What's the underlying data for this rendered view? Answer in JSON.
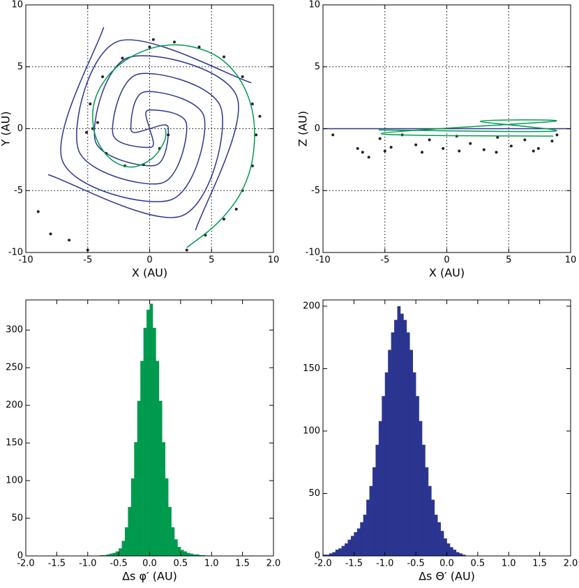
{
  "chart_data": [
    {
      "type": "line",
      "xlabel": "X (AU)",
      "ylabel": "Y (AU)",
      "xlim": [
        -10,
        10
      ],
      "ylim": [
        -10,
        10
      ],
      "xticks": [
        -10,
        -5,
        0,
        5,
        10
      ],
      "yticks": [
        -10,
        -5,
        0,
        5,
        10
      ],
      "grid": true,
      "series": [
        {
          "mode": "line",
          "color": "#2b3590",
          "x": [
            0,
            0.11,
            -2.97,
            -0.95,
            5.76,
            2.6,
            -8.2
          ],
          "values": [
            0,
            -1.5,
            -0.42,
            4.4,
            1.68,
            -7.04,
            -3.71
          ]
        },
        {
          "mode": "line",
          "color": "#2b3590",
          "x": [
            0,
            1.5,
            0.42,
            -4.4,
            -1.68,
            7.04,
            3.71
          ],
          "values": [
            0,
            0.11,
            -2.97,
            -0.95,
            5.76,
            2.6,
            -8.2
          ]
        },
        {
          "mode": "line",
          "color": "#2b3590",
          "x": [
            0,
            -0.11,
            2.97,
            0.95,
            -5.76,
            -2.6,
            8.2
          ],
          "values": [
            0,
            1.5,
            0.42,
            -4.4,
            -1.68,
            7.04,
            3.71
          ]
        },
        {
          "mode": "line",
          "color": "#2b3590",
          "x": [
            0,
            -1.5,
            -0.42,
            4.4,
            1.68,
            -7.04,
            -3.71
          ],
          "values": [
            0,
            -0.11,
            2.97,
            0.95,
            -5.76,
            -2.6,
            8.2
          ]
        },
        {
          "mode": "points",
          "color": "#222222",
          "x": [
            1.5,
            0.8,
            -0.5,
            -2,
            -3.5,
            -4.6,
            -4.8,
            -3.8,
            -2.2,
            0,
            2,
            4,
            6,
            7.5,
            8.3,
            8.6,
            8.3,
            7.5,
            6,
            4.5,
            3,
            -4.2,
            -5.1,
            0.3,
            8.9,
            7,
            -9,
            -8,
            -6.5,
            -5
          ],
          "values": [
            -0.5,
            -1.6,
            -2.9,
            -3,
            -2,
            0,
            2,
            4.2,
            5.7,
            6.6,
            7,
            6.6,
            5.8,
            4.2,
            2,
            -0.5,
            -3,
            -5,
            -7.3,
            -8.6,
            -9.8,
            0.5,
            -0.3,
            7.2,
            1,
            -6.5,
            -6.7,
            -8.5,
            -9,
            -9.8
          ]
        },
        {
          "mode": "line",
          "color": "#009a4e",
          "x": [
            1.3,
            1.2,
            0.2,
            -1.5,
            -3.2,
            -4.4,
            -4.5,
            -3.4,
            -1.5,
            1,
            3.5,
            5.8,
            7.5,
            8.4,
            8.3,
            7.3,
            5.4,
            3
          ],
          "values": [
            0,
            -1,
            -2.4,
            -3.1,
            -2.4,
            -0.5,
            2,
            4.2,
            5.8,
            6.7,
            6.6,
            5.6,
            3.6,
            0.8,
            -2.5,
            -5.3,
            -7.7,
            -9.6
          ]
        }
      ]
    },
    {
      "type": "line",
      "xlabel": "X (AU)",
      "ylabel": "Z (AU)",
      "xlim": [
        -10,
        10
      ],
      "ylim": [
        -10,
        10
      ],
      "xticks": [
        -10,
        -5,
        0,
        5,
        10
      ],
      "yticks": [
        -10,
        -5,
        0,
        5,
        10
      ],
      "grid": true,
      "series": [
        {
          "mode": "line",
          "color": "#2b3590",
          "x": [
            -10,
            10
          ],
          "values": [
            0,
            0
          ]
        },
        {
          "mode": "points",
          "color": "#222222",
          "x": [
            -5.4,
            -4.5,
            -3.6,
            -2.5,
            -1.4,
            -0.3,
            0.8,
            1.9,
            3,
            4.1,
            5.2,
            6.3,
            7.4,
            8.5,
            8.9,
            -5,
            -2,
            1,
            4,
            7,
            -9.2,
            -7.2,
            -6.8,
            -6.3
          ],
          "values": [
            -0.8,
            -1.5,
            -0.5,
            -1.3,
            -0.9,
            -1.6,
            -0.6,
            -1.2,
            -1.7,
            -0.7,
            -1.4,
            -0.9,
            -1.6,
            -1,
            -0.5,
            -1.8,
            -1.9,
            -1.8,
            -1.9,
            -1.8,
            -0.5,
            -1.6,
            -1.9,
            -2.3
          ]
        },
        {
          "mode": "line",
          "color": "#009a4e",
          "x": [
            -5.5,
            8.7,
            2.7,
            8.7,
            -5.3,
            8.6
          ],
          "values": [
            -0.1,
            -0.2,
            0.6,
            0.6,
            -0.4,
            -0.6
          ]
        }
      ]
    },
    {
      "type": "histogram",
      "xlabel": "Δs φ′ (AU)",
      "color": "#009a4e",
      "xlim": [
        -2,
        2
      ],
      "ylim": [
        0,
        340
      ],
      "xticks": [
        {
          "value": -2,
          "label": "-2.0"
        },
        {
          "value": -1.5,
          "label": "-1.5"
        },
        {
          "value": -1,
          "label": "-1.0"
        },
        {
          "value": -0.5,
          "label": "-0.5"
        },
        {
          "value": 0,
          "label": "0.0"
        },
        {
          "value": 0.5,
          "label": "0.5"
        },
        {
          "value": 1,
          "label": "1.0"
        },
        {
          "value": 1.5,
          "label": "1.5"
        },
        {
          "value": 2,
          "label": "2.0"
        }
      ],
      "yticks": [
        0,
        50,
        100,
        150,
        200,
        250,
        300
      ],
      "bins": [
        -0.8,
        -0.75,
        -0.7,
        -0.65,
        -0.6,
        -0.55,
        -0.5,
        -0.45,
        -0.4,
        -0.35,
        -0.3,
        -0.25,
        -0.2,
        -0.15,
        -0.1,
        -0.05,
        0,
        0.05,
        0.1,
        0.15,
        0.2,
        0.25,
        0.3,
        0.35,
        0.4,
        0.45,
        0.5,
        0.55,
        0.6,
        0.65,
        0.7,
        0.75,
        0.8,
        0.85,
        0.9
      ],
      "values": [
        1,
        1,
        2,
        3,
        4,
        6,
        10,
        20,
        38,
        65,
        103,
        151,
        206,
        259,
        303,
        327,
        335,
        303,
        259,
        206,
        151,
        103,
        65,
        38,
        22,
        12,
        8,
        6,
        4,
        3,
        2,
        2,
        1,
        1
      ]
    },
    {
      "type": "histogram",
      "xlabel": "Δs Θ′ (AU)",
      "color": "#2b3590",
      "xlim": [
        -2,
        2
      ],
      "ylim": [
        0,
        205
      ],
      "xticks": [
        {
          "value": -2,
          "label": "-2.0"
        },
        {
          "value": -1.5,
          "label": "-1.5"
        },
        {
          "value": -1,
          "label": "-1.0"
        },
        {
          "value": -0.5,
          "label": "-0.5"
        },
        {
          "value": 0,
          "label": "0.0"
        },
        {
          "value": 0.5,
          "label": "0.5"
        },
        {
          "value": 1,
          "label": "1.0"
        },
        {
          "value": 1.5,
          "label": "1.5"
        },
        {
          "value": 2,
          "label": "2.0"
        }
      ],
      "yticks": [
        0,
        50,
        100,
        150,
        200
      ],
      "bins": [
        -2,
        -1.95,
        -1.9,
        -1.85,
        -1.8,
        -1.75,
        -1.7,
        -1.65,
        -1.6,
        -1.55,
        -1.5,
        -1.45,
        -1.4,
        -1.35,
        -1.3,
        -1.25,
        -1.2,
        -1.15,
        -1.1,
        -1.05,
        -1,
        -0.95,
        -0.9,
        -0.85,
        -0.8,
        -0.75,
        -0.7,
        -0.65,
        -0.6,
        -0.55,
        -0.5,
        -0.45,
        -0.4,
        -0.35,
        -0.3,
        -0.25,
        -0.2,
        -0.15,
        -0.1,
        -0.05,
        0,
        0.05,
        0.1,
        0.15,
        0.2,
        0.25,
        0.3
      ],
      "values": [
        1,
        1,
        2,
        3,
        5,
        6,
        8,
        10,
        13,
        16,
        19,
        22,
        27,
        33,
        45,
        56,
        71,
        89,
        108,
        128,
        147,
        165,
        179,
        189,
        200,
        194,
        189,
        179,
        165,
        147,
        128,
        108,
        89,
        71,
        56,
        45,
        33,
        27,
        20,
        14,
        10,
        7,
        5,
        3,
        2,
        1
      ]
    }
  ]
}
